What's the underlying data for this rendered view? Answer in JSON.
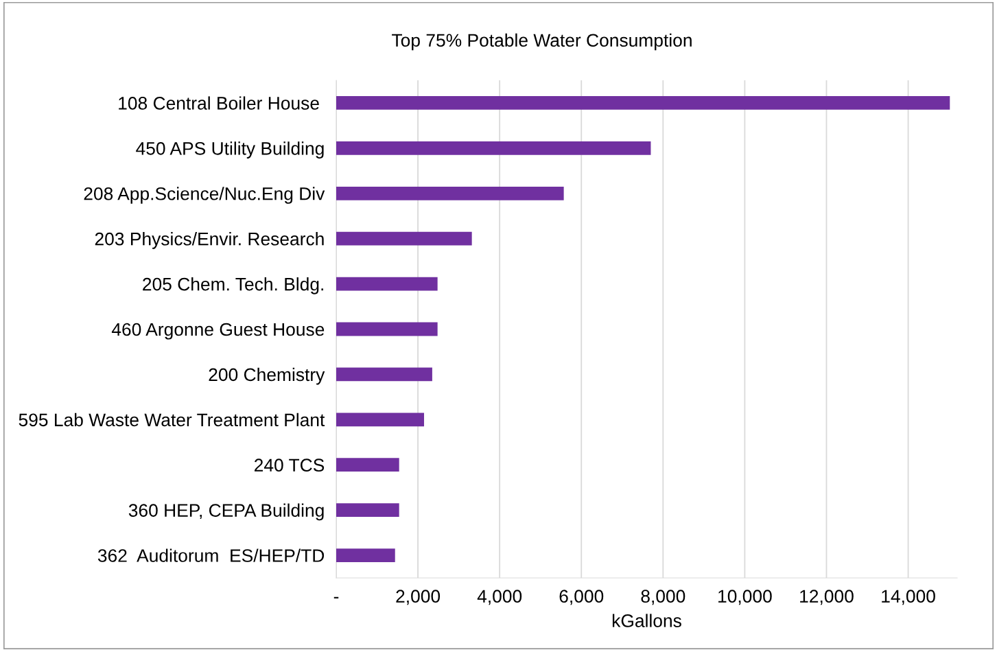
{
  "chart_data": {
    "type": "bar",
    "orientation": "horizontal",
    "title": "Top 75% Potable Water Consumption",
    "xlabel": "kGallons",
    "categories": [
      "108 Central Boiler House ",
      "450 APS Utility Building",
      "208 App.Science/Nuc.Eng Div",
      "203 Physics/Envir. Research",
      "205 Chem. Tech. Bldg.",
      "460 Argonne Guest House",
      "200 Chemistry",
      "595 Lab Waste Water Treatment Plant",
      "240 TCS",
      "360 HEP, CEPA Building",
      "362  Auditorum  ES/HEP/TD"
    ],
    "values": [
      15020,
      7700,
      5570,
      3320,
      2480,
      2480,
      2350,
      2150,
      1540,
      1540,
      1440
    ],
    "color": "#7030a0",
    "xlim": [
      0,
      15200
    ],
    "xticks": [
      {
        "value": 0,
        "label": "-"
      },
      {
        "value": 2000,
        "label": "2,000"
      },
      {
        "value": 4000,
        "label": "4,000"
      },
      {
        "value": 6000,
        "label": "6,000"
      },
      {
        "value": 8000,
        "label": "8,000"
      },
      {
        "value": 10000,
        "label": "10,000"
      },
      {
        "value": 12000,
        "label": "12,000"
      },
      {
        "value": 14000,
        "label": "14,000"
      }
    ],
    "grid": "x",
    "legend": false
  }
}
